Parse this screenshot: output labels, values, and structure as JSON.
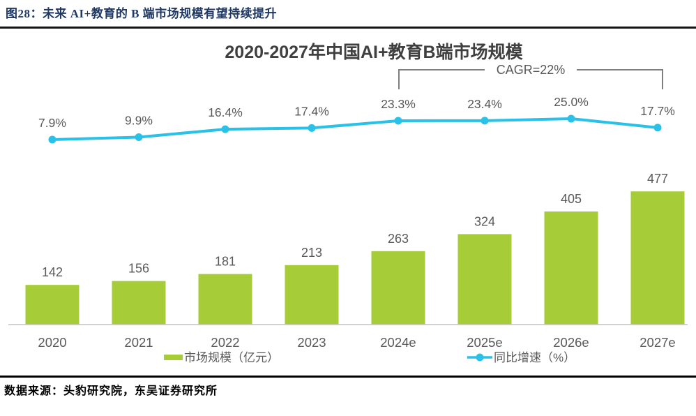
{
  "figure_header": {
    "text": "图28：未来 AI+教育的 B 端市场规模有望持续提升"
  },
  "chart_data": {
    "type": "bar+line",
    "title": "2020-2027年中国AI+教育B端市场规模",
    "categories": [
      "2020",
      "2021",
      "2022",
      "2023",
      "2024e",
      "2025e",
      "2026e",
      "2027e"
    ],
    "series": [
      {
        "name": "市场规模（亿元）",
        "type": "bar",
        "color": "#a6cd38",
        "values": [
          142,
          156,
          181,
          213,
          263,
          324,
          405,
          477
        ],
        "labels": [
          "142",
          "156",
          "181",
          "213",
          "263",
          "324",
          "405",
          "477"
        ]
      },
      {
        "name": "同比增速（%）",
        "type": "line",
        "color": "#29c1e7",
        "values": [
          7.9,
          9.9,
          16.4,
          17.4,
          23.3,
          23.4,
          25.0,
          17.7
        ],
        "labels": [
          "7.9%",
          "9.9%",
          "16.4%",
          "17.4%",
          "23.3%",
          "23.4%",
          "25.0%",
          "17.7%"
        ]
      }
    ],
    "annotation": {
      "label": "CAGR=22%",
      "from": "2024e",
      "to": "2027e",
      "color": "#7f7f7f"
    },
    "xlabel": "",
    "ylabel": "",
    "grid": false,
    "value_axes_hidden": true,
    "legend_position": "bottom",
    "axis_line_color": "#c3c3c3"
  },
  "footer": {
    "source": "数据来源：头豹研究院，东吴证券研究所"
  }
}
